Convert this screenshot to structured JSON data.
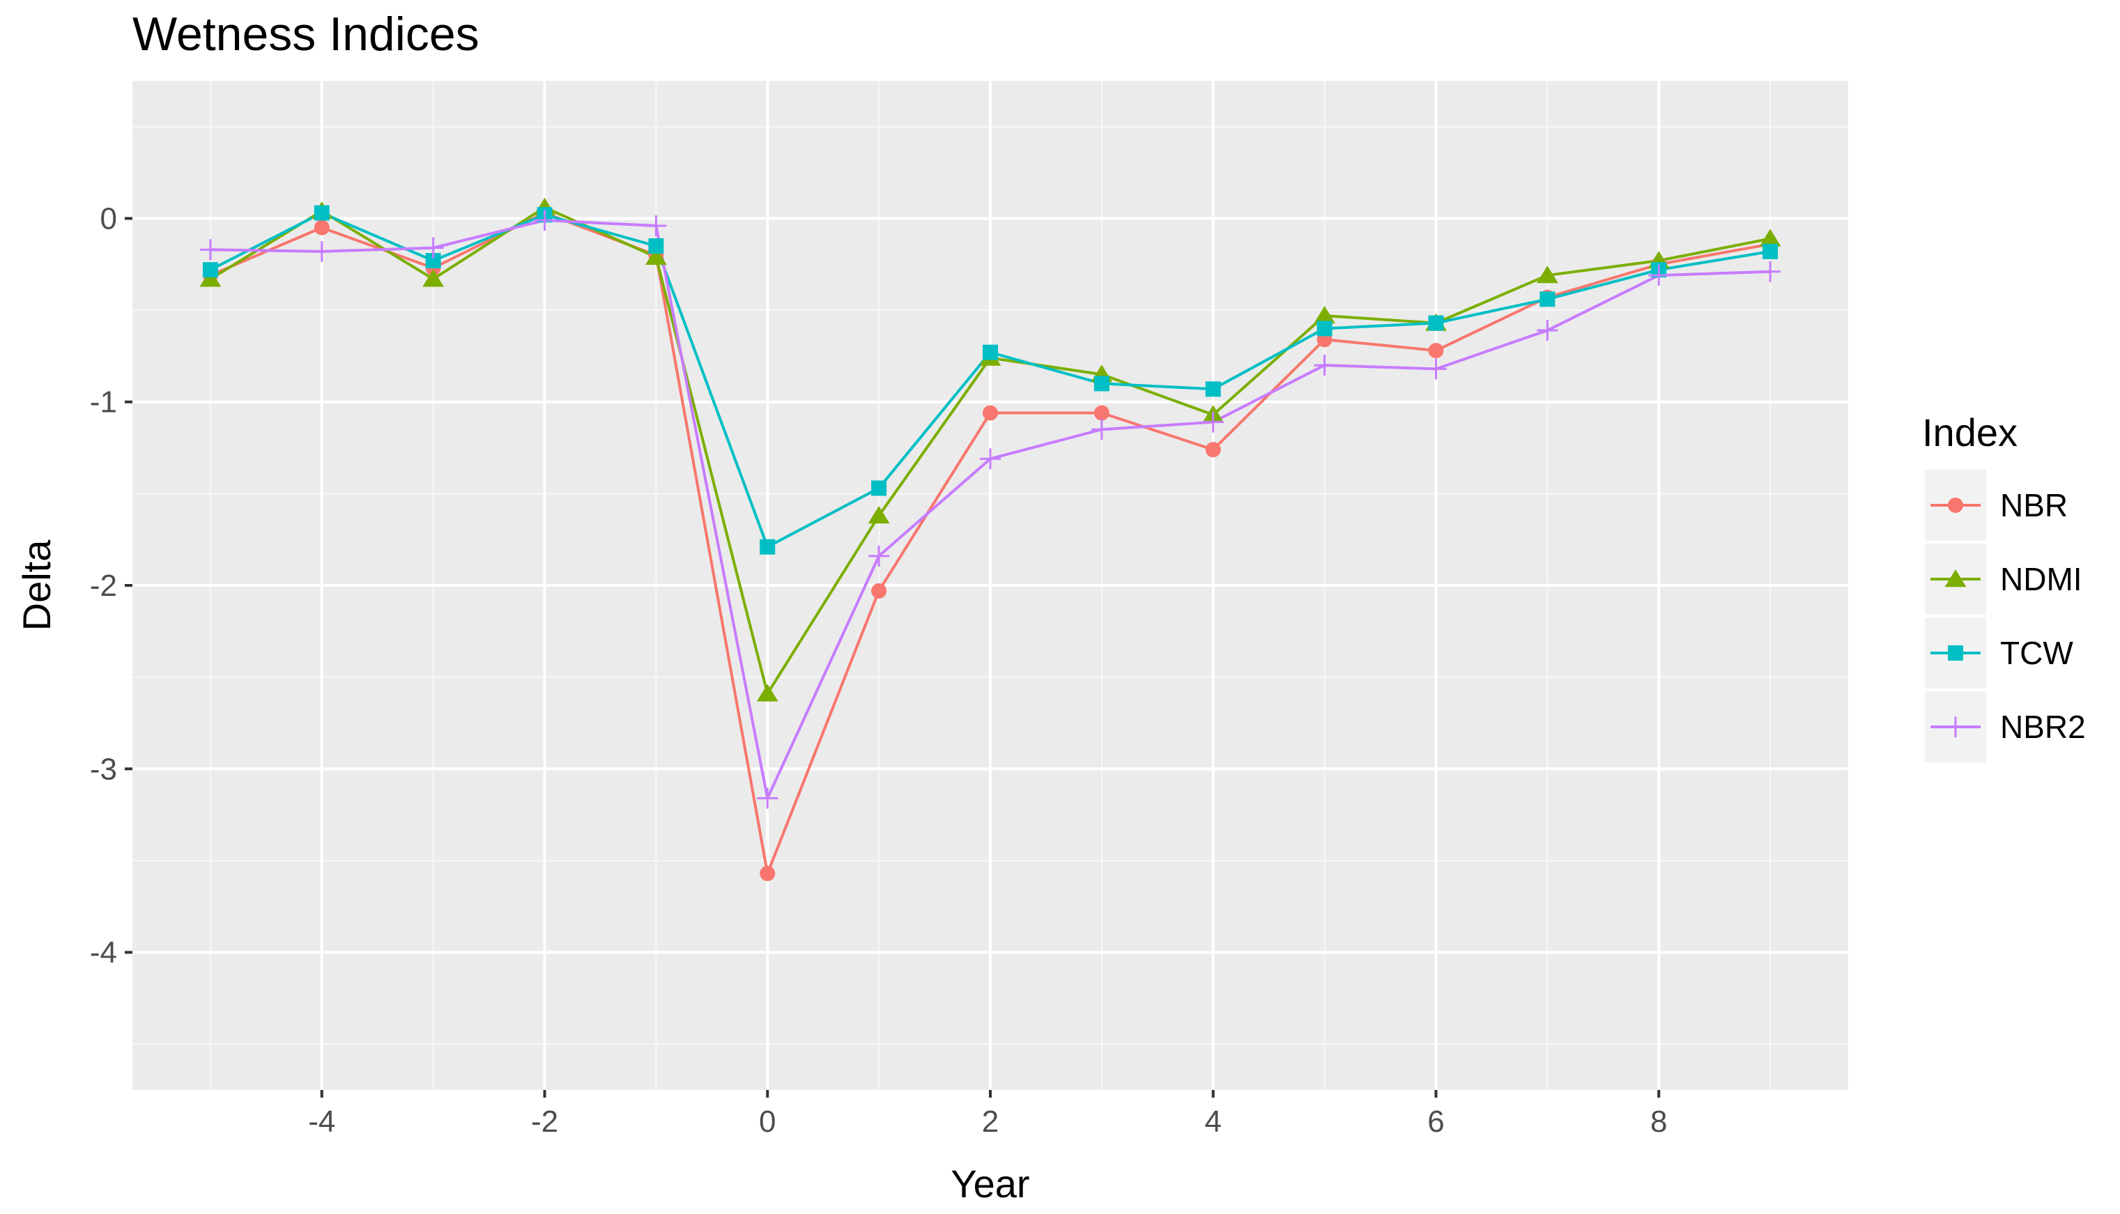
{
  "chart_data": {
    "type": "line",
    "title": "Wetness Indices",
    "xlabel": "Year",
    "ylabel": "Delta",
    "xlim": [
      -5.7,
      9.7
    ],
    "ylim": [
      -4.75,
      0.75
    ],
    "x_ticks": [
      -4,
      -2,
      0,
      2,
      4,
      6,
      8
    ],
    "x_tick_labels": [
      "-4",
      "-2",
      "0",
      "2",
      "4",
      "6",
      "8"
    ],
    "y_ticks": [
      0,
      -1,
      -2,
      -3,
      -4
    ],
    "y_tick_labels": [
      "0",
      "-1",
      "-2",
      "-3",
      "-4"
    ],
    "grid": true,
    "legend_title": "Index",
    "legend_position": "right",
    "x": [
      -5,
      -4,
      -3,
      -2,
      -1,
      0,
      1,
      2,
      3,
      4,
      5,
      6,
      7,
      8,
      9
    ],
    "series": [
      {
        "name": "NBR",
        "color": "#F8766D",
        "marker": "circle",
        "values": [
          -0.31,
          -0.05,
          -0.27,
          0.03,
          -0.2,
          -3.57,
          -2.03,
          -1.06,
          -1.06,
          -1.26,
          -0.66,
          -0.72,
          -0.43,
          -0.25,
          -0.14
        ]
      },
      {
        "name": "NDMI",
        "color": "#7CAE00",
        "marker": "triangle",
        "values": [
          -0.33,
          0.04,
          -0.33,
          0.06,
          -0.21,
          -2.59,
          -1.62,
          -0.76,
          -0.85,
          -1.07,
          -0.53,
          -0.57,
          -0.31,
          -0.23,
          -0.11
        ]
      },
      {
        "name": "TCW",
        "color": "#00BFC4",
        "marker": "square",
        "values": [
          -0.28,
          0.03,
          -0.23,
          0.02,
          -0.15,
          -1.79,
          -1.47,
          -0.73,
          -0.9,
          -0.93,
          -0.6,
          -0.57,
          -0.44,
          -0.28,
          -0.18
        ]
      },
      {
        "name": "NBR2",
        "color": "#C77CFF",
        "marker": "plus",
        "values": [
          -0.17,
          -0.18,
          -0.16,
          -0.01,
          -0.04,
          -3.16,
          -1.84,
          -1.31,
          -1.15,
          -1.11,
          -0.8,
          -0.82,
          -0.61,
          -0.31,
          -0.29
        ]
      }
    ]
  }
}
